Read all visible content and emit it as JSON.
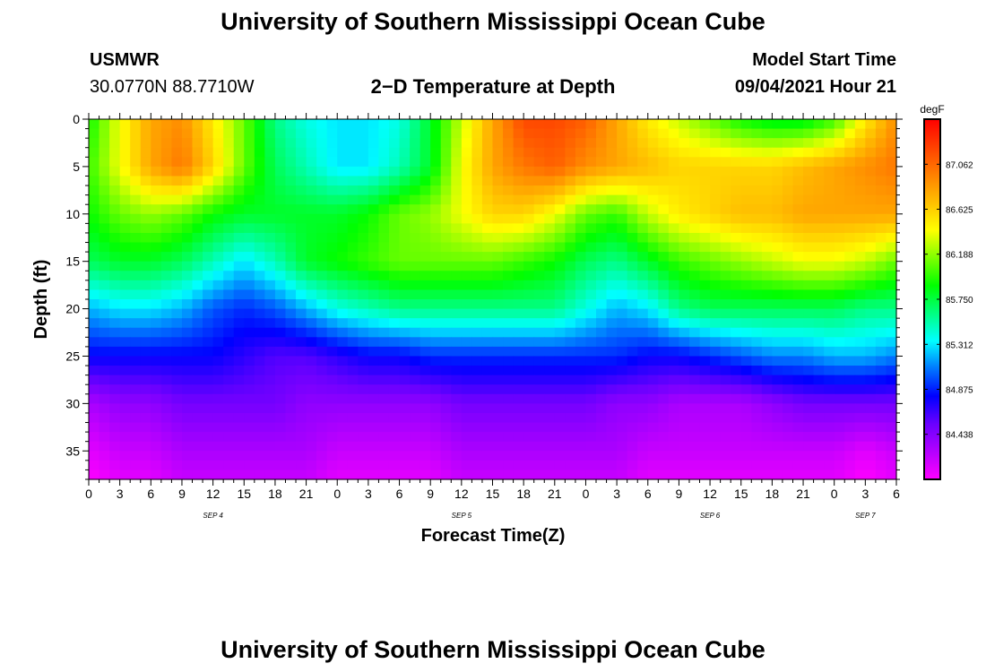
{
  "header": {
    "title": "University of Southern Mississippi Ocean Cube",
    "station": "USMWR",
    "coords": "30.0770N  88.7710W",
    "chart_title": "2−D Temperature at Depth",
    "model_label": "Model Start Time",
    "model_time": "09/04/2021 Hour 21"
  },
  "footer": {
    "title": "University of Southern Mississippi Ocean Cube"
  },
  "colorbar": {
    "unit": "degF",
    "colors": [
      "#ff00ff",
      "#b400ff",
      "#6a00ff",
      "#0000ff",
      "#0078ff",
      "#00ffff",
      "#00ff7f",
      "#00ff00",
      "#7fff00",
      "#ffff00",
      "#ffbf00",
      "#ff8000",
      "#ff4000",
      "#ff0000"
    ]
  },
  "chart_data": {
    "type": "heatmap",
    "title": "2−D Temperature at Depth",
    "xlabel": "Forecast Time(Z)",
    "ylabel": "Depth (ft)",
    "xlim": [
      0,
      78
    ],
    "ylim": [
      38,
      0
    ],
    "x_tick_labels": [
      "0",
      "3",
      "6",
      "9",
      "12",
      "15",
      "18",
      "21",
      "0",
      "3",
      "6",
      "9",
      "12",
      "15",
      "18",
      "21",
      "0",
      "3",
      "6",
      "9",
      "12",
      "15",
      "18",
      "21",
      "0",
      "3",
      "6"
    ],
    "y_ticks": [
      0,
      5,
      10,
      15,
      20,
      25,
      30,
      35
    ],
    "day_labels": [
      {
        "label": "SEP 4",
        "hour": 12
      },
      {
        "label": "SEP 5",
        "hour": 36
      },
      {
        "label": "SEP 6",
        "hour": 60
      },
      {
        "label": "SEP 7",
        "hour": 75
      }
    ],
    "colorbar_ticks": [
      87.062,
      86.625,
      86.188,
      85.75,
      85.312,
      84.875,
      84.438
    ],
    "value_range": [
      84.0,
      87.5
    ],
    "x": [
      0,
      3,
      6,
      9,
      12,
      15,
      18,
      21,
      24,
      27,
      30,
      33,
      36,
      39,
      42,
      45,
      48,
      51,
      54,
      57,
      60,
      63,
      66,
      69,
      72,
      75,
      78
    ],
    "depths": [
      0,
      5,
      10,
      15,
      20,
      25,
      30,
      35,
      38
    ],
    "values": [
      [
        85.9,
        86.4,
        86.8,
        86.9,
        86.5,
        86.1,
        85.6,
        85.4,
        85.3,
        85.3,
        85.4,
        85.8,
        86.3,
        86.8,
        87.2,
        87.2,
        87.1,
        86.8,
        86.5,
        86.3,
        86.1,
        85.9,
        85.8,
        85.8,
        86.0,
        86.5,
        86.9
      ],
      [
        86.0,
        86.4,
        86.8,
        87.0,
        86.6,
        86.1,
        85.7,
        85.5,
        85.3,
        85.3,
        85.5,
        85.8,
        86.4,
        86.8,
        87.0,
        87.1,
        86.9,
        86.8,
        86.7,
        86.6,
        86.6,
        86.6,
        86.6,
        86.7,
        86.8,
        86.9,
        87.0
      ],
      [
        85.9,
        86.1,
        86.2,
        86.1,
        85.9,
        85.8,
        85.8,
        85.8,
        85.8,
        85.9,
        86.1,
        86.2,
        86.4,
        86.6,
        86.6,
        86.4,
        86.1,
        86.0,
        86.3,
        86.5,
        86.6,
        86.7,
        86.7,
        86.8,
        86.8,
        86.8,
        86.8
      ],
      [
        85.7,
        85.8,
        85.8,
        85.7,
        85.5,
        85.3,
        85.5,
        85.8,
        85.9,
        86.0,
        86.1,
        86.1,
        86.1,
        86.1,
        86.0,
        85.9,
        85.7,
        85.6,
        85.8,
        86.0,
        86.1,
        86.2,
        86.3,
        86.4,
        86.4,
        86.3,
        86.1
      ],
      [
        85.2,
        85.3,
        85.3,
        85.2,
        85.0,
        84.9,
        85.0,
        85.2,
        85.4,
        85.5,
        85.6,
        85.6,
        85.6,
        85.6,
        85.6,
        85.6,
        85.4,
        85.2,
        85.3,
        85.6,
        85.7,
        85.7,
        85.7,
        85.7,
        85.7,
        85.6,
        85.6
      ],
      [
        84.8,
        84.8,
        84.8,
        84.8,
        84.8,
        84.7,
        84.6,
        84.6,
        84.7,
        84.8,
        84.8,
        84.9,
        84.9,
        84.9,
        84.9,
        84.9,
        84.9,
        84.9,
        84.8,
        84.8,
        84.9,
        85.0,
        85.1,
        85.1,
        85.2,
        85.2,
        85.1
      ],
      [
        84.3,
        84.4,
        84.4,
        84.5,
        84.5,
        84.5,
        84.5,
        84.4,
        84.4,
        84.4,
        84.4,
        84.4,
        84.5,
        84.5,
        84.5,
        84.5,
        84.5,
        84.4,
        84.4,
        84.3,
        84.3,
        84.3,
        84.4,
        84.5,
        84.5,
        84.5,
        84.5
      ],
      [
        84.1,
        84.2,
        84.2,
        84.3,
        84.3,
        84.3,
        84.3,
        84.3,
        84.2,
        84.2,
        84.2,
        84.2,
        84.3,
        84.3,
        84.3,
        84.3,
        84.3,
        84.3,
        84.2,
        84.2,
        84.2,
        84.2,
        84.2,
        84.2,
        84.2,
        84.1,
        84.2
      ],
      [
        84.0,
        84.1,
        84.1,
        84.2,
        84.2,
        84.2,
        84.2,
        84.2,
        84.1,
        84.1,
        84.1,
        84.1,
        84.2,
        84.2,
        84.2,
        84.2,
        84.2,
        84.2,
        84.1,
        84.1,
        84.1,
        84.1,
        84.1,
        84.1,
        84.1,
        84.0,
        84.1
      ]
    ]
  }
}
